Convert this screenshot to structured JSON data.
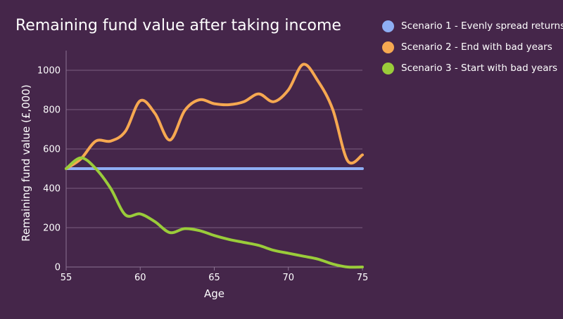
{
  "chart_data": {
    "type": "line",
    "title": "Remaining fund value after taking income",
    "xlabel": "Age",
    "ylabel": "Remaining fund value (£,000)",
    "xlim": [
      55,
      75
    ],
    "ylim": [
      0,
      1100
    ],
    "xticks": [
      55,
      60,
      65,
      70,
      75
    ],
    "yticks": [
      0,
      200,
      400,
      600,
      800,
      1000
    ],
    "grid": "horizontal",
    "legend_position": "top-right",
    "series": [
      {
        "name": "Scenario 1 - Evenly spread returns",
        "color": "#8eaef4",
        "x": [
          55,
          75
        ],
        "y": [
          500,
          500
        ]
      },
      {
        "name": "Scenario 2 - End with bad years",
        "color": "#f6a851",
        "x": [
          55,
          56,
          57,
          58,
          59,
          60,
          61,
          62,
          63,
          64,
          65,
          66,
          67,
          68,
          69,
          70,
          71,
          72,
          73,
          74,
          75
        ],
        "y": [
          500,
          550,
          640,
          640,
          690,
          845,
          780,
          645,
          795,
          850,
          830,
          825,
          840,
          880,
          840,
          900,
          1030,
          945,
          800,
          540,
          570
        ]
      },
      {
        "name": "Scenario 3 - Start with bad years",
        "color": "#9acc3a",
        "x": [
          55,
          56,
          57,
          58,
          59,
          60,
          61,
          62,
          63,
          64,
          65,
          66,
          67,
          68,
          69,
          70,
          71,
          72,
          73,
          74,
          75
        ],
        "y": [
          500,
          555,
          500,
          400,
          265,
          270,
          230,
          175,
          195,
          185,
          160,
          140,
          125,
          110,
          85,
          70,
          55,
          40,
          15,
          0,
          0
        ]
      }
    ]
  }
}
